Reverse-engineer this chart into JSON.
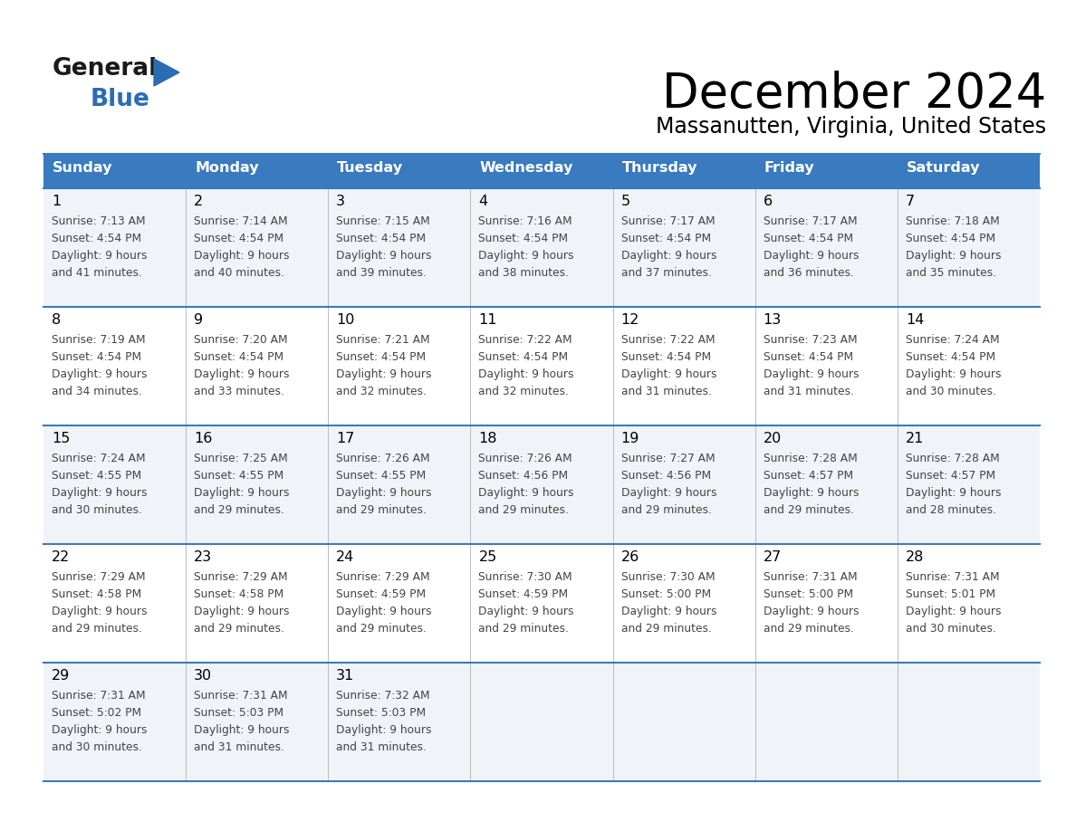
{
  "title": "December 2024",
  "subtitle": "Massanutten, Virginia, United States",
  "header_color": "#3a7abf",
  "header_text_color": "#ffffff",
  "cell_bg_even": "#f0f4f8",
  "cell_bg_odd": "#ffffff",
  "border_color": "#3a7abf",
  "inner_line_color": "#aaaaaa",
  "day_names": [
    "Sunday",
    "Monday",
    "Tuesday",
    "Wednesday",
    "Thursday",
    "Friday",
    "Saturday"
  ],
  "days": [
    {
      "day": 1,
      "col": 0,
      "row": 0,
      "sunrise": "7:13 AM",
      "sunset": "4:54 PM",
      "daylight": "9 hours and 41 minutes."
    },
    {
      "day": 2,
      "col": 1,
      "row": 0,
      "sunrise": "7:14 AM",
      "sunset": "4:54 PM",
      "daylight": "9 hours and 40 minutes."
    },
    {
      "day": 3,
      "col": 2,
      "row": 0,
      "sunrise": "7:15 AM",
      "sunset": "4:54 PM",
      "daylight": "9 hours and 39 minutes."
    },
    {
      "day": 4,
      "col": 3,
      "row": 0,
      "sunrise": "7:16 AM",
      "sunset": "4:54 PM",
      "daylight": "9 hours and 38 minutes."
    },
    {
      "day": 5,
      "col": 4,
      "row": 0,
      "sunrise": "7:17 AM",
      "sunset": "4:54 PM",
      "daylight": "9 hours and 37 minutes."
    },
    {
      "day": 6,
      "col": 5,
      "row": 0,
      "sunrise": "7:17 AM",
      "sunset": "4:54 PM",
      "daylight": "9 hours and 36 minutes."
    },
    {
      "day": 7,
      "col": 6,
      "row": 0,
      "sunrise": "7:18 AM",
      "sunset": "4:54 PM",
      "daylight": "9 hours and 35 minutes."
    },
    {
      "day": 8,
      "col": 0,
      "row": 1,
      "sunrise": "7:19 AM",
      "sunset": "4:54 PM",
      "daylight": "9 hours and 34 minutes."
    },
    {
      "day": 9,
      "col": 1,
      "row": 1,
      "sunrise": "7:20 AM",
      "sunset": "4:54 PM",
      "daylight": "9 hours and 33 minutes."
    },
    {
      "day": 10,
      "col": 2,
      "row": 1,
      "sunrise": "7:21 AM",
      "sunset": "4:54 PM",
      "daylight": "9 hours and 32 minutes."
    },
    {
      "day": 11,
      "col": 3,
      "row": 1,
      "sunrise": "7:22 AM",
      "sunset": "4:54 PM",
      "daylight": "9 hours and 32 minutes."
    },
    {
      "day": 12,
      "col": 4,
      "row": 1,
      "sunrise": "7:22 AM",
      "sunset": "4:54 PM",
      "daylight": "9 hours and 31 minutes."
    },
    {
      "day": 13,
      "col": 5,
      "row": 1,
      "sunrise": "7:23 AM",
      "sunset": "4:54 PM",
      "daylight": "9 hours and 31 minutes."
    },
    {
      "day": 14,
      "col": 6,
      "row": 1,
      "sunrise": "7:24 AM",
      "sunset": "4:54 PM",
      "daylight": "9 hours and 30 minutes."
    },
    {
      "day": 15,
      "col": 0,
      "row": 2,
      "sunrise": "7:24 AM",
      "sunset": "4:55 PM",
      "daylight": "9 hours and 30 minutes."
    },
    {
      "day": 16,
      "col": 1,
      "row": 2,
      "sunrise": "7:25 AM",
      "sunset": "4:55 PM",
      "daylight": "9 hours and 29 minutes."
    },
    {
      "day": 17,
      "col": 2,
      "row": 2,
      "sunrise": "7:26 AM",
      "sunset": "4:55 PM",
      "daylight": "9 hours and 29 minutes."
    },
    {
      "day": 18,
      "col": 3,
      "row": 2,
      "sunrise": "7:26 AM",
      "sunset": "4:56 PM",
      "daylight": "9 hours and 29 minutes."
    },
    {
      "day": 19,
      "col": 4,
      "row": 2,
      "sunrise": "7:27 AM",
      "sunset": "4:56 PM",
      "daylight": "9 hours and 29 minutes."
    },
    {
      "day": 20,
      "col": 5,
      "row": 2,
      "sunrise": "7:28 AM",
      "sunset": "4:57 PM",
      "daylight": "9 hours and 29 minutes."
    },
    {
      "day": 21,
      "col": 6,
      "row": 2,
      "sunrise": "7:28 AM",
      "sunset": "4:57 PM",
      "daylight": "9 hours and 28 minutes."
    },
    {
      "day": 22,
      "col": 0,
      "row": 3,
      "sunrise": "7:29 AM",
      "sunset": "4:58 PM",
      "daylight": "9 hours and 29 minutes."
    },
    {
      "day": 23,
      "col": 1,
      "row": 3,
      "sunrise": "7:29 AM",
      "sunset": "4:58 PM",
      "daylight": "9 hours and 29 minutes."
    },
    {
      "day": 24,
      "col": 2,
      "row": 3,
      "sunrise": "7:29 AM",
      "sunset": "4:59 PM",
      "daylight": "9 hours and 29 minutes."
    },
    {
      "day": 25,
      "col": 3,
      "row": 3,
      "sunrise": "7:30 AM",
      "sunset": "4:59 PM",
      "daylight": "9 hours and 29 minutes."
    },
    {
      "day": 26,
      "col": 4,
      "row": 3,
      "sunrise": "7:30 AM",
      "sunset": "5:00 PM",
      "daylight": "9 hours and 29 minutes."
    },
    {
      "day": 27,
      "col": 5,
      "row": 3,
      "sunrise": "7:31 AM",
      "sunset": "5:00 PM",
      "daylight": "9 hours and 29 minutes."
    },
    {
      "day": 28,
      "col": 6,
      "row": 3,
      "sunrise": "7:31 AM",
      "sunset": "5:01 PM",
      "daylight": "9 hours and 30 minutes."
    },
    {
      "day": 29,
      "col": 0,
      "row": 4,
      "sunrise": "7:31 AM",
      "sunset": "5:02 PM",
      "daylight": "9 hours and 30 minutes."
    },
    {
      "day": 30,
      "col": 1,
      "row": 4,
      "sunrise": "7:31 AM",
      "sunset": "5:03 PM",
      "daylight": "9 hours and 31 minutes."
    },
    {
      "day": 31,
      "col": 2,
      "row": 4,
      "sunrise": "7:32 AM",
      "sunset": "5:03 PM",
      "daylight": "9 hours and 31 minutes."
    }
  ],
  "num_rows": 5,
  "logo_color_general": "#1a1a1a",
  "logo_color_blue": "#2a6db5",
  "logo_triangle_color": "#2a6db5",
  "text_color": "#444444"
}
